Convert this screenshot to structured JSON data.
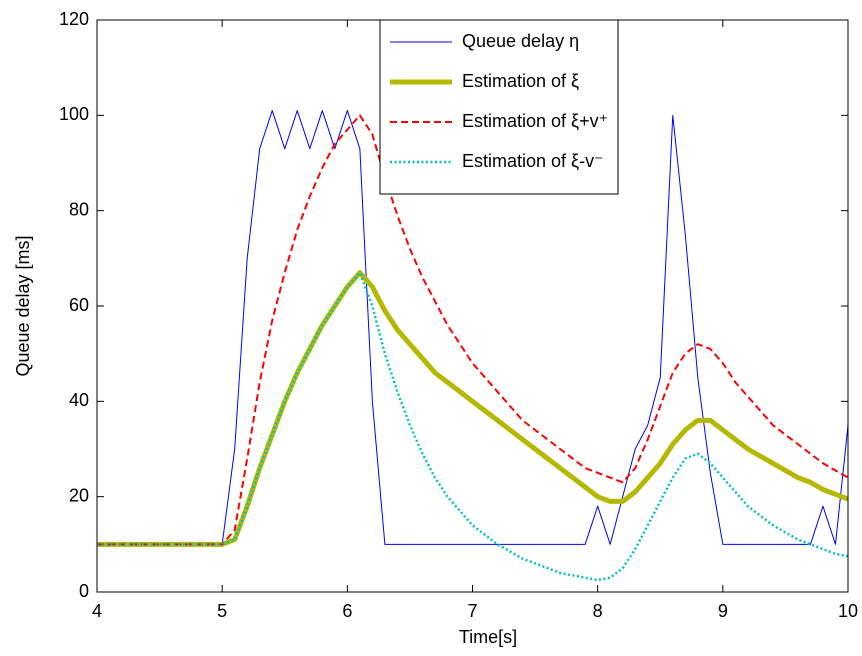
{
  "chart_data": {
    "type": "line",
    "xlabel": "Time[s]",
    "ylabel": "Queue delay [ms]",
    "xlim": [
      4,
      10
    ],
    "xticks": [
      4,
      5,
      6,
      7,
      8,
      9,
      10
    ],
    "ylim": [
      0,
      120
    ],
    "yticks": [
      0,
      20,
      40,
      60,
      80,
      100,
      120
    ],
    "grid": false,
    "legend": "top",
    "x": [
      4,
      4.1,
      4.2,
      4.3,
      4.4,
      4.5,
      4.6,
      4.7,
      4.8,
      4.9,
      5,
      5.1,
      5.2,
      5.3,
      5.4,
      5.5,
      5.6,
      5.7,
      5.8,
      5.9,
      6,
      6.1,
      6.2,
      6.3,
      6.4,
      6.5,
      6.6,
      6.7,
      6.8,
      6.9,
      7,
      7.1,
      7.2,
      7.3,
      7.4,
      7.5,
      7.6,
      7.7,
      7.8,
      7.9,
      8,
      8.1,
      8.2,
      8.3,
      8.4,
      8.5,
      8.6,
      8.7,
      8.8,
      8.9,
      9,
      9.1,
      9.2,
      9.3,
      9.4,
      9.5,
      9.6,
      9.7,
      9.8,
      9.9,
      10
    ],
    "series": [
      {
        "name": "Queue delay η",
        "color": "#0000ff",
        "style": "solid",
        "values": [
          10,
          10,
          10,
          10,
          10,
          10,
          10,
          10,
          10,
          10,
          10,
          30,
          70,
          93,
          101,
          93,
          101,
          93,
          101,
          93,
          101,
          93,
          40,
          10,
          10,
          10,
          10,
          10,
          10,
          10,
          10,
          10,
          10,
          10,
          10,
          10,
          10,
          10,
          10,
          10,
          18,
          10,
          20,
          30,
          35,
          45,
          100,
          75,
          45,
          25,
          10,
          10,
          10,
          10,
          10,
          10,
          10,
          10,
          18,
          10,
          35
        ]
      },
      {
        "name": "Estimation of ξ",
        "color": "#b5b800",
        "style": "thick",
        "values": [
          10,
          10,
          10,
          10,
          10,
          10,
          10,
          10,
          10,
          10,
          10,
          11,
          18,
          26,
          33,
          40,
          46,
          51,
          56,
          60,
          64,
          67,
          64,
          59,
          55,
          52,
          49,
          46,
          44,
          42,
          40,
          38,
          36,
          34,
          32,
          30,
          28,
          26,
          24,
          22,
          20,
          19,
          19,
          21,
          24,
          27,
          31,
          34,
          36,
          36,
          34,
          32,
          30,
          28.5,
          27,
          25.5,
          24,
          23,
          21.5,
          20.5,
          19.5
        ]
      },
      {
        "name": "Estimation of ξ+v⁺",
        "color": "#ff0000",
        "style": "dashed",
        "values": [
          10,
          10,
          10,
          10,
          10,
          10,
          10,
          10,
          10,
          10,
          10,
          13,
          28,
          44,
          57,
          67,
          76,
          83,
          89,
          94,
          97,
          100,
          96,
          87,
          79,
          72,
          66,
          61,
          56,
          52,
          48,
          45,
          42,
          39,
          36,
          34,
          32,
          30,
          28,
          26,
          25,
          24,
          23,
          26,
          32,
          39,
          46,
          50,
          52,
          51,
          48,
          44,
          41,
          38,
          35,
          33,
          31,
          29,
          27,
          25.5,
          24
        ]
      },
      {
        "name": "Estimation of ξ-v⁻",
        "color": "#00c0c0",
        "style": "dotted",
        "values": [
          10,
          10,
          10,
          10,
          10,
          10,
          10,
          10,
          10,
          10,
          10,
          11,
          18,
          26,
          33,
          40,
          46,
          51,
          56,
          60,
          64,
          67,
          60,
          50,
          42,
          35,
          29,
          24,
          20,
          17,
          14,
          12,
          10,
          8.5,
          7,
          6,
          5,
          4,
          3.5,
          3,
          2.5,
          3,
          5,
          9,
          14,
          19,
          24,
          28,
          29,
          27,
          24,
          21,
          18,
          16,
          14,
          12.5,
          11,
          10,
          9,
          8,
          7.5
        ]
      }
    ]
  }
}
